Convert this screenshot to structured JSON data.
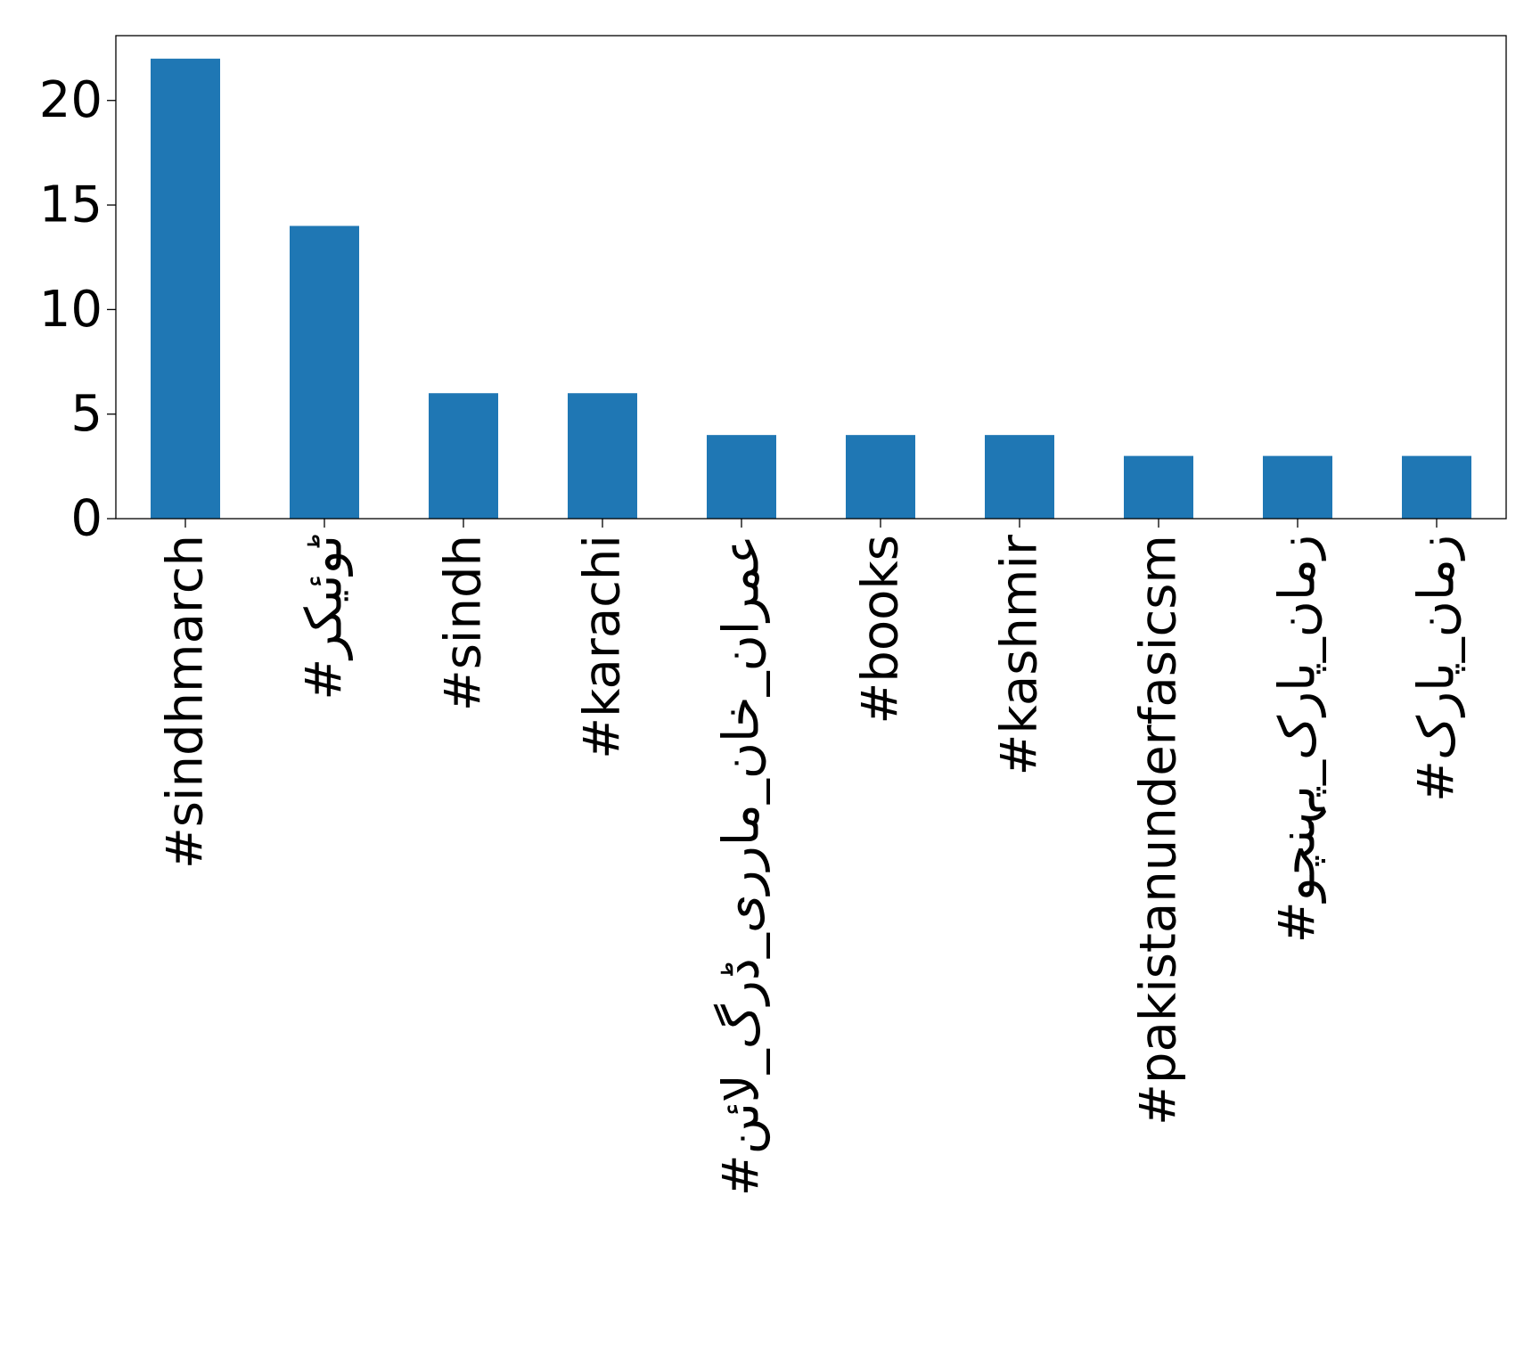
{
  "chart_data": {
    "type": "bar",
    "categories": [
      "#sindhmarch",
      "#ٹوئیکر",
      "#sindh",
      "#karachi",
      "#عمران_خان_مارری_ڈرگ_لائن",
      "#books",
      "#kashmir",
      "#pakistanunderfasicsm",
      "#زمان_پارک_پہنچو",
      "#زمان_پارک"
    ],
    "values": [
      22,
      14,
      6,
      6,
      4,
      4,
      4,
      3,
      3,
      3
    ],
    "yticks": [
      "0",
      "5",
      "10",
      "15",
      "20"
    ],
    "ylim": [
      0,
      23.1
    ],
    "grid": false,
    "legend": "none",
    "bar_color": "#1f77b4"
  }
}
